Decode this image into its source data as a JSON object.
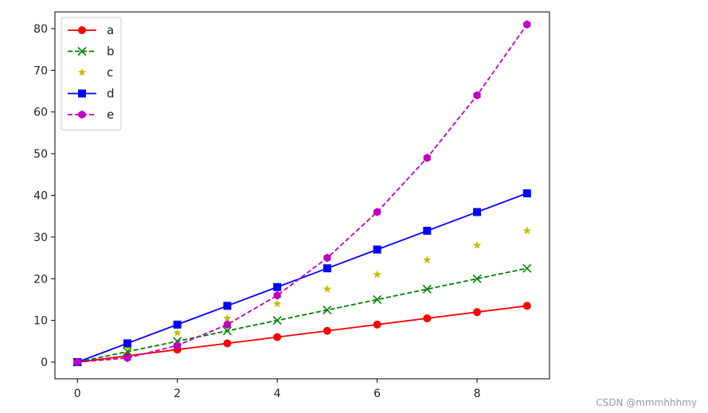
{
  "chart_data": {
    "type": "line",
    "x": [
      0,
      1,
      2,
      3,
      4,
      5,
      6,
      7,
      8,
      9
    ],
    "xlim": [
      -0.45,
      9.45
    ],
    "ylim": [
      -4,
      84
    ],
    "xticks": [
      0,
      2,
      4,
      6,
      8
    ],
    "yticks": [
      0,
      10,
      20,
      30,
      40,
      50,
      60,
      70,
      80
    ],
    "grid": false,
    "legend_position": "top-left",
    "series": [
      {
        "name": "a",
        "color": "#ff0000",
        "linestyle": "solid",
        "marker": "circle",
        "values": [
          0,
          1.5,
          3,
          4.5,
          6,
          7.5,
          9,
          10.5,
          12,
          13.5
        ]
      },
      {
        "name": "b",
        "color": "#008000",
        "linestyle": "dashed",
        "marker": "x",
        "values": [
          0,
          2.5,
          5,
          7.5,
          10,
          12.5,
          15,
          17.5,
          20,
          22.5
        ]
      },
      {
        "name": "c",
        "color": "#bfbf00",
        "linestyle": "none",
        "marker": "star",
        "values": [
          0,
          3.5,
          7,
          10.5,
          14,
          17.5,
          21,
          24.5,
          28,
          31.5
        ]
      },
      {
        "name": "d",
        "color": "#0000ff",
        "linestyle": "solid",
        "marker": "square",
        "values": [
          0,
          4.5,
          9,
          13.5,
          18,
          22.5,
          27,
          31.5,
          36,
          40.5
        ]
      },
      {
        "name": "e",
        "color": "#bf00bf",
        "linestyle": "dashed",
        "marker": "hexagon",
        "values": [
          0,
          1,
          4,
          9,
          16,
          25,
          36,
          49,
          64,
          81
        ]
      }
    ]
  },
  "watermark": "CSDN @mmmhhhmy"
}
